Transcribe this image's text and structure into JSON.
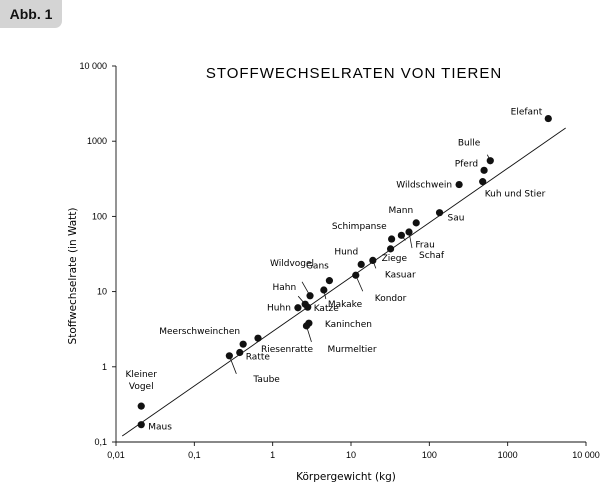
{
  "badge": "Abb. 1",
  "chart_data": {
    "type": "scatter",
    "title": "STOFFWECHSELRATEN VON TIEREN",
    "xlabel": "Körpergewicht (kg)",
    "ylabel": "Stoffwechselrate (in Watt)",
    "xscale": "log",
    "yscale": "log",
    "xlim": [
      0.01,
      10000
    ],
    "ylim": [
      0.1,
      10000
    ],
    "xticks": [
      0.01,
      0.1,
      1,
      10,
      100,
      1000,
      10000
    ],
    "xtick_labels": [
      "0,01",
      "0,1",
      "1",
      "10",
      "100",
      "1000",
      "10 000"
    ],
    "yticks": [
      0.1,
      1,
      10,
      100,
      1000,
      10000
    ],
    "ytick_labels": [
      "0,1",
      "1",
      "10",
      "100",
      "1000",
      "10 000"
    ],
    "grid": false,
    "fit_line": {
      "x": [
        0.012,
        5500
      ],
      "y": [
        0.12,
        1500
      ]
    },
    "points": [
      {
        "name": "Maus",
        "x": 0.021,
        "y": 0.17
      },
      {
        "name": "Kleiner Vogel",
        "x": 0.021,
        "y": 0.3
      },
      {
        "name": "Taube",
        "x": 0.28,
        "y": 1.4
      },
      {
        "name": "Ratte",
        "x": 0.38,
        "y": 1.55
      },
      {
        "name": "Meerschweinchen",
        "x": 0.42,
        "y": 2.0
      },
      {
        "name": "Riesenratte",
        "x": 0.65,
        "y": 2.4
      },
      {
        "name": "Huhn",
        "x": 2.1,
        "y": 6.1
      },
      {
        "name": "Hahn",
        "x": 2.6,
        "y": 6.8
      },
      {
        "name": "Katze",
        "x": 2.8,
        "y": 6.2
      },
      {
        "name": "Wildvogel",
        "x": 3.0,
        "y": 8.8
      },
      {
        "name": "Kaninchen",
        "x": 2.9,
        "y": 3.8
      },
      {
        "name": "Murmeltier",
        "x": 2.7,
        "y": 3.5
      },
      {
        "name": "Makake",
        "x": 4.5,
        "y": 10.5
      },
      {
        "name": "Gans",
        "x": 5.3,
        "y": 14
      },
      {
        "name": "Kondor",
        "x": 11.5,
        "y": 16.5
      },
      {
        "name": "Hund",
        "x": 13.5,
        "y": 23
      },
      {
        "name": "Kasuar",
        "x": 19,
        "y": 26
      },
      {
        "name": "Ziege",
        "x": 32,
        "y": 37
      },
      {
        "name": "Schimpanse",
        "x": 33,
        "y": 50
      },
      {
        "name": "Frau",
        "x": 44,
        "y": 56
      },
      {
        "name": "Schaf",
        "x": 55,
        "y": 62
      },
      {
        "name": "Mann",
        "x": 68,
        "y": 82
      },
      {
        "name": "Sau",
        "x": 135,
        "y": 112
      },
      {
        "name": "Wildschwein",
        "x": 240,
        "y": 265
      },
      {
        "name": "Kuh und Stier",
        "x": 480,
        "y": 290
      },
      {
        "name": "Pferd",
        "x": 500,
        "y": 410
      },
      {
        "name": "Bulle",
        "x": 600,
        "y": 550
      },
      {
        "name": "Elefant",
        "x": 3300,
        "y": 2000
      }
    ]
  }
}
